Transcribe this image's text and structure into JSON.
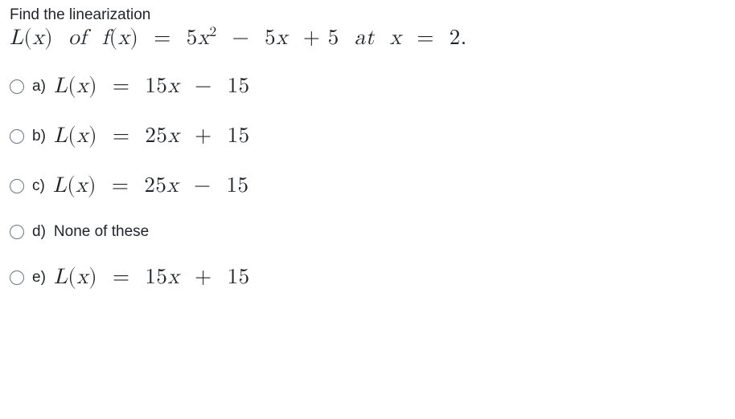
{
  "colors": {
    "text": "#212529",
    "radio_border": "#6c757d",
    "background": "#ffffff"
  },
  "typography": {
    "ui_font": "Segoe UI, Arial, sans-serif",
    "math_font": "Latin Modern Math, Cambria Math, STIX Two Math, serif",
    "prompt_size": 19,
    "math_size": 27
  },
  "question": {
    "line1": "Find the linearization",
    "line2_html": "L(x) of  f(x)  =  5x²  −  5x  + 5  at  x  =  2."
  },
  "options": [
    {
      "letter": "a)",
      "type": "math",
      "text": "L(x)  =  15x  −  15"
    },
    {
      "letter": "b)",
      "type": "math",
      "text": "L(x)  =  25x  +  15"
    },
    {
      "letter": "c)",
      "type": "math",
      "text": "L(x)  =  25x  −  15"
    },
    {
      "letter": "d)",
      "type": "text",
      "text": "None of these"
    },
    {
      "letter": "e)",
      "type": "math",
      "text": "L(x)  =  15x  +  15"
    }
  ]
}
